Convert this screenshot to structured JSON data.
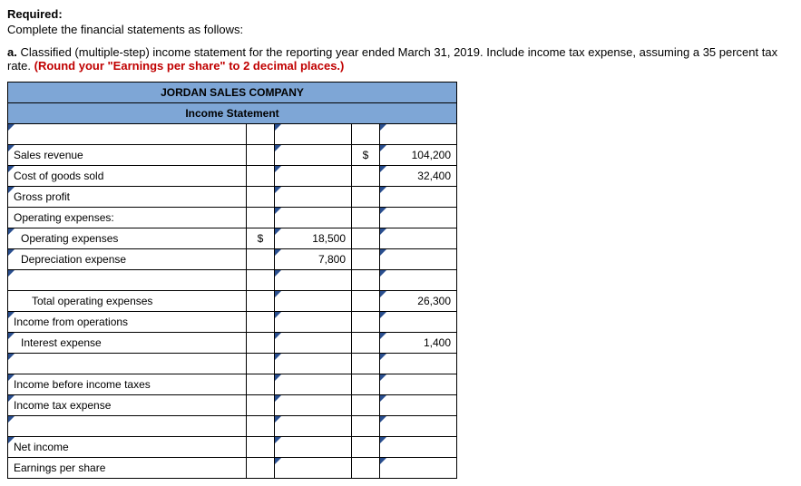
{
  "text": {
    "required_label": "Required:",
    "required_instr": "Complete the financial statements as follows:",
    "part_a_prefix": "a. ",
    "part_a_body": "Classified (multiple-step) income statement for the reporting year ended March 31, 2019. Include income tax expense, assuming a 35 percent tax rate. ",
    "part_a_red": "(Round your \"Earnings per share\" to 2 decimal places.)"
  },
  "table": {
    "header1": "JORDAN SALES COMPANY",
    "header2": "Income Statement",
    "columns": {
      "label_width": 230,
      "cur_width": 18,
      "val_width": 72
    },
    "rows": [
      {
        "label": "",
        "indent": 0,
        "tick": true,
        "cur1": "",
        "val1": "",
        "cur2": "",
        "val2": ""
      },
      {
        "label": "Sales revenue",
        "indent": 0,
        "tick": true,
        "cur1": "",
        "val1": "",
        "cur2": "$",
        "val2": "104,200"
      },
      {
        "label": "Cost of goods sold",
        "indent": 0,
        "tick": true,
        "cur1": "",
        "val1": "",
        "cur2": "",
        "val2": "32,400"
      },
      {
        "label": "Gross profit",
        "indent": 0,
        "tick": true,
        "cur1": "",
        "val1": "",
        "cur2": "",
        "val2": ""
      },
      {
        "label": "Operating expenses:",
        "indent": 0,
        "tick": false,
        "cur1": "",
        "val1": "",
        "cur2": "",
        "val2": ""
      },
      {
        "label": "Operating expenses",
        "indent": 1,
        "tick": true,
        "cur1": "$",
        "val1": "18,500",
        "cur2": "",
        "val2": ""
      },
      {
        "label": "Depreciation expense",
        "indent": 1,
        "tick": true,
        "cur1": "",
        "val1": "7,800",
        "cur2": "",
        "val2": ""
      },
      {
        "label": "",
        "indent": 1,
        "tick": true,
        "cur1": "",
        "val1": "",
        "cur2": "",
        "val2": ""
      },
      {
        "label": "Total operating expenses",
        "indent": 2,
        "tick": false,
        "cur1": "",
        "val1": "",
        "cur2": "",
        "val2": "26,300"
      },
      {
        "label": "Income from operations",
        "indent": 0,
        "tick": true,
        "cur1": "",
        "val1": "",
        "cur2": "",
        "val2": ""
      },
      {
        "label": "Interest expense",
        "indent": 1,
        "tick": true,
        "cur1": "",
        "val1": "",
        "cur2": "",
        "val2": "1,400"
      },
      {
        "label": "",
        "indent": 1,
        "tick": true,
        "cur1": "",
        "val1": "",
        "cur2": "",
        "val2": ""
      },
      {
        "label": "Income before income taxes",
        "indent": 0,
        "tick": true,
        "cur1": "",
        "val1": "",
        "cur2": "",
        "val2": ""
      },
      {
        "label": "Income tax expense",
        "indent": 0,
        "tick": true,
        "cur1": "",
        "val1": "",
        "cur2": "",
        "val2": ""
      },
      {
        "label": "",
        "indent": 0,
        "tick": true,
        "cur1": "",
        "val1": "",
        "cur2": "",
        "val2": ""
      },
      {
        "label": "Net income",
        "indent": 0,
        "tick": true,
        "cur1": "",
        "val1": "",
        "cur2": "",
        "val2": ""
      },
      {
        "label": "Earnings per share",
        "indent": 0,
        "tick": false,
        "cur1": "",
        "val1": "",
        "cur2": "",
        "val2": ""
      }
    ]
  },
  "colors": {
    "header_bg": "#7ea6d6",
    "border": "#000000",
    "tick": "#2a4f8f",
    "red": "#c00000"
  }
}
